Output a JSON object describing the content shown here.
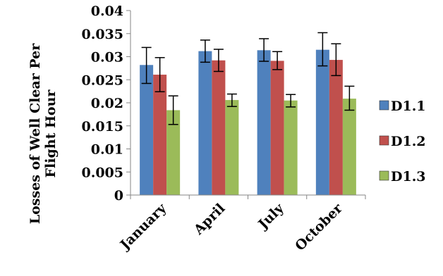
{
  "chart_data": {
    "type": "bar",
    "title": "",
    "xlabel": "",
    "ylabel_lines": [
      "Losses of Well Clear Per",
      "Flight Hour"
    ],
    "categories": [
      "January",
      "April",
      "July",
      "October"
    ],
    "ylim": [
      0,
      0.04
    ],
    "yticks": [
      "0",
      "0.005",
      "0.01",
      "0.015",
      "0.02",
      "0.025",
      "0.03",
      "0.035",
      "0.04"
    ],
    "legend_position": "right",
    "grid": false,
    "series": [
      {
        "name": "D1.1",
        "color": "#4F81BD",
        "values": [
          0.0282,
          0.0312,
          0.0314,
          0.0315
        ],
        "err_low": [
          0.0242,
          0.0288,
          0.029,
          0.028
        ],
        "err_high": [
          0.032,
          0.0336,
          0.0339,
          0.0352
        ]
      },
      {
        "name": "D1.2",
        "color": "#C0504D",
        "values": [
          0.0261,
          0.0292,
          0.0291,
          0.0293
        ],
        "err_low": [
          0.0224,
          0.0268,
          0.0272,
          0.0259
        ],
        "err_high": [
          0.0298,
          0.0316,
          0.0311,
          0.0328
        ]
      },
      {
        "name": "D1.3",
        "color": "#9BBB59",
        "values": [
          0.0184,
          0.0206,
          0.0205,
          0.0209
        ],
        "err_low": [
          0.0153,
          0.0192,
          0.0191,
          0.0184
        ],
        "err_high": [
          0.0215,
          0.0219,
          0.0218,
          0.0236
        ]
      }
    ]
  }
}
